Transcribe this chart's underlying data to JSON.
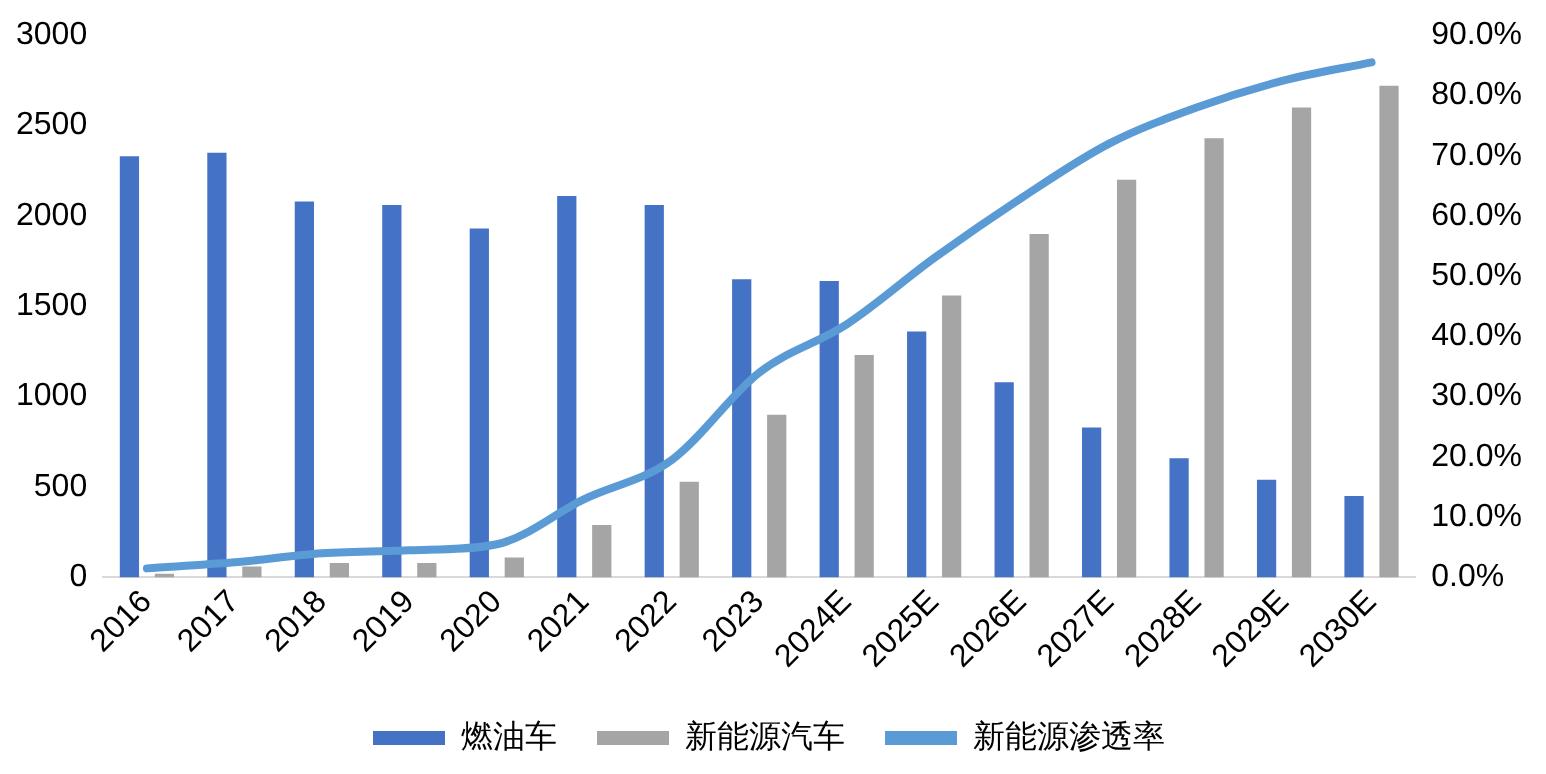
{
  "chart_data": {
    "type": "bar",
    "categories": [
      "2016",
      "2017",
      "2018",
      "2019",
      "2020",
      "2021",
      "2022",
      "2023",
      "2024E",
      "2025E",
      "2026E",
      "2027E",
      "2028E",
      "2029E",
      "2030E"
    ],
    "series": [
      {
        "name": "燃油车",
        "color": "#4472c4",
        "values": [
          2330,
          2350,
          2080,
          2060,
          1930,
          2110,
          2060,
          1650,
          1640,
          1360,
          1080,
          830,
          660,
          540,
          450
        ]
      },
      {
        "name": "新能源汽车",
        "color": "#a5a5a5",
        "values": [
          20,
          60,
          80,
          80,
          110,
          290,
          530,
          900,
          1230,
          1560,
          1900,
          2200,
          2430,
          2600,
          2720
        ]
      },
      {
        "name": "新能源渗透率",
        "type": "line",
        "axis": "y2",
        "color": "#5b9bd5",
        "values": [
          1.5,
          2.5,
          4,
          4.5,
          5.5,
          13,
          19.5,
          34,
          42,
          53,
          63,
          72,
          78,
          82.5,
          85.5
        ]
      }
    ],
    "ylim": [
      0,
      3000
    ],
    "yticks": [
      0,
      500,
      1000,
      1500,
      2000,
      2500,
      3000
    ],
    "y2lim": [
      0,
      90
    ],
    "y2ticks": [
      {
        "value": 0,
        "label": "0.0%"
      },
      {
        "value": 10,
        "label": "10.0%"
      },
      {
        "value": 20,
        "label": "20.0%"
      },
      {
        "value": 30,
        "label": "30.0%"
      },
      {
        "value": 40,
        "label": "40.0%"
      },
      {
        "value": 50,
        "label": "50.0%"
      },
      {
        "value": 60,
        "label": "60.0%"
      },
      {
        "value": 70,
        "label": "70.0%"
      },
      {
        "value": 80,
        "label": "80.0%"
      },
      {
        "value": 90,
        "label": "90.0%"
      }
    ],
    "grid": false,
    "legend": "bottom",
    "marker": "none",
    "line_style": "solid"
  }
}
